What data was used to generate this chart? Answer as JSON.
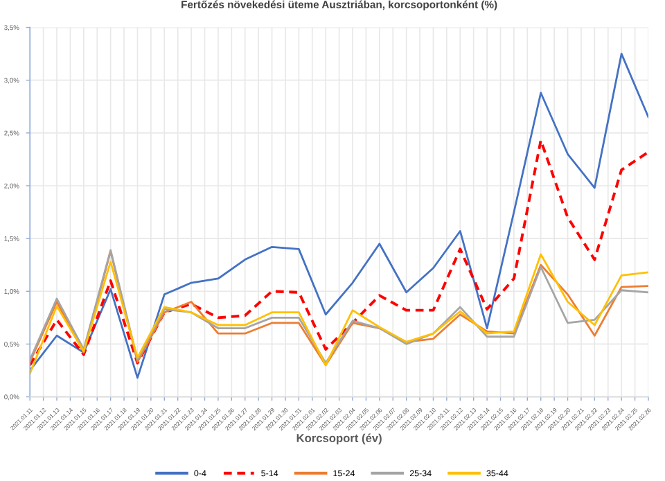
{
  "chart_data": {
    "type": "line",
    "title": "Fertőzés növekedési üteme Ausztriában, korcsoportonként (%)",
    "xlabel": "Korcsoport (év)",
    "categories": [
      "2021.01.11",
      "2021.01.12",
      "2021.01.13",
      "2021.01.14",
      "2021.01.15",
      "2021.01.16",
      "2021.01.17",
      "2021.01.18",
      "2021.01.19",
      "2021.01.20",
      "2021.01.21",
      "2021.01.22",
      "2021.01.23",
      "2021.01.24",
      "2021.01.25",
      "2021.01.26",
      "2021.01.27",
      "2021.01.28",
      "2021.01.29",
      "2021.01.30",
      "2021.01.31",
      "2021.02.01",
      "2021.02.02",
      "2021.02.03",
      "2021.02.04",
      "2021.02.05",
      "2021.02.06",
      "2021.02.07",
      "2021.02.08",
      "2021.02.09",
      "2021.02.10",
      "2021.02.11",
      "2021.02.12",
      "2021.02.13",
      "2021.02.14",
      "2021.02.15",
      "2021.02.16",
      "2021.02.17",
      "2021.02.18",
      "2021.02.19",
      "2021.02.20",
      "2021.02.21",
      "2021.02.22",
      "2021.02.23",
      "2021.02.24",
      "2021.02.25",
      "2021.02.26"
    ],
    "series": [
      {
        "name": "0-4",
        "color": "#4472c4",
        "line_style": "solid",
        "values": [
          0.25,
          null,
          0.58,
          null,
          0.42,
          null,
          1.02,
          null,
          0.18,
          null,
          0.97,
          null,
          1.08,
          null,
          1.12,
          null,
          1.3,
          null,
          1.42,
          null,
          1.4,
          null,
          0.78,
          null,
          1.08,
          null,
          1.45,
          null,
          0.99,
          null,
          1.22,
          null,
          1.57,
          null,
          0.65,
          null,
          1.75,
          null,
          2.88,
          null,
          2.3,
          null,
          1.98,
          null,
          3.25,
          null,
          2.65
        ]
      },
      {
        "name": "5-14",
        "color": "#ff0000",
        "line_style": "dashed",
        "values": [
          0.3,
          null,
          0.73,
          null,
          0.4,
          null,
          1.1,
          null,
          0.32,
          null,
          0.8,
          null,
          0.88,
          null,
          0.75,
          null,
          0.77,
          null,
          1.0,
          null,
          0.99,
          null,
          0.45,
          null,
          0.7,
          null,
          0.96,
          null,
          0.82,
          null,
          0.82,
          null,
          1.4,
          null,
          0.83,
          null,
          1.12,
          null,
          2.43,
          null,
          1.7,
          null,
          1.3,
          null,
          2.15,
          null,
          2.32
        ]
      },
      {
        "name": "15-24",
        "color": "#ed7d31",
        "line_style": "solid",
        "values": [
          0.33,
          null,
          0.9,
          null,
          0.42,
          null,
          1.38,
          null,
          0.33,
          null,
          0.8,
          null,
          0.9,
          null,
          0.6,
          null,
          0.6,
          null,
          0.7,
          null,
          0.7,
          null,
          0.3,
          null,
          0.7,
          null,
          0.65,
          null,
          0.52,
          null,
          0.55,
          null,
          0.78,
          null,
          0.62,
          null,
          0.6,
          null,
          1.25,
          null,
          0.97,
          null,
          0.58,
          null,
          1.04,
          null,
          1.05
        ]
      },
      {
        "name": "25-34",
        "color": "#a5a5a5",
        "line_style": "solid",
        "values": [
          0.35,
          null,
          0.93,
          null,
          0.45,
          null,
          1.39,
          null,
          0.35,
          null,
          0.83,
          null,
          0.8,
          null,
          0.65,
          null,
          0.65,
          null,
          0.75,
          null,
          0.75,
          null,
          0.32,
          null,
          0.72,
          null,
          0.65,
          null,
          0.5,
          null,
          0.6,
          null,
          0.85,
          null,
          0.57,
          null,
          0.57,
          null,
          1.23,
          null,
          0.7,
          null,
          0.73,
          null,
          1.01,
          null,
          0.99
        ]
      },
      {
        "name": "35-44",
        "color": "#ffc000",
        "line_style": "solid",
        "values": [
          0.22,
          null,
          0.86,
          null,
          0.43,
          null,
          1.28,
          null,
          0.37,
          null,
          0.85,
          null,
          0.8,
          null,
          0.68,
          null,
          0.68,
          null,
          0.8,
          null,
          0.8,
          null,
          0.3,
          null,
          0.82,
          null,
          0.66,
          null,
          0.52,
          null,
          0.6,
          null,
          0.81,
          null,
          0.6,
          null,
          0.62,
          null,
          1.35,
          null,
          0.9,
          null,
          0.68,
          null,
          1.15,
          null,
          1.18
        ]
      }
    ],
    "ylim": [
      0,
      3.5
    ],
    "yticks": [
      {
        "value": 0,
        "label": "0,0%"
      },
      {
        "value": 0.5,
        "label": "0,5%"
      },
      {
        "value": 1.0,
        "label": "1,0%"
      },
      {
        "value": 1.5,
        "label": "1,5%"
      },
      {
        "value": 2.0,
        "label": "2,0%"
      },
      {
        "value": 2.5,
        "label": "2,5%"
      },
      {
        "value": 3.0,
        "label": "3,0%"
      },
      {
        "value": 3.5,
        "label": "3,5%"
      }
    ],
    "grid": true,
    "legend": "bottom",
    "marker": "none"
  }
}
